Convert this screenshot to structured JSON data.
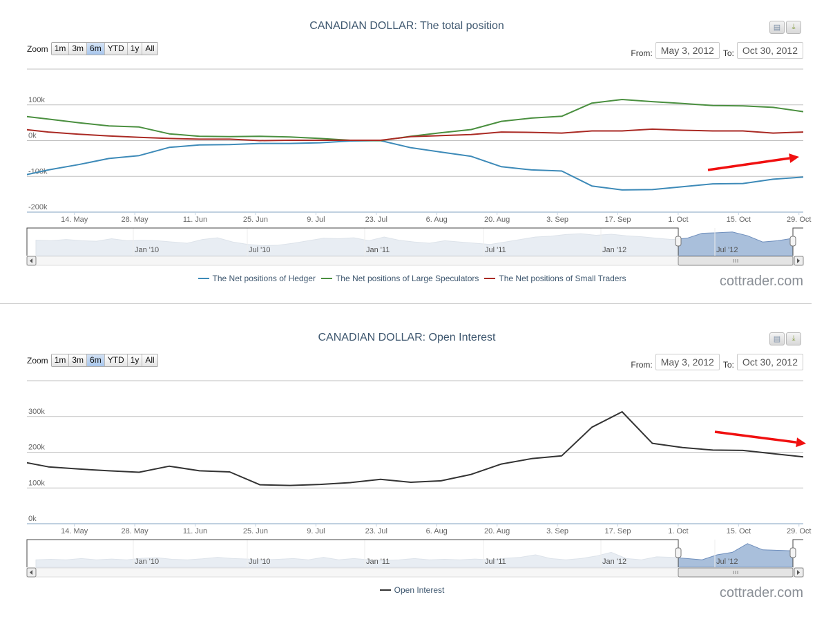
{
  "common": {
    "zoom_label": "Zoom",
    "zoom_buttons": [
      "1m",
      "3m",
      "6m",
      "YTD",
      "1y",
      "All"
    ],
    "selected_zoom": "6m",
    "from_label": "From:",
    "to_label": "To:",
    "from_value": "May 3, 2012",
    "to_value": "Oct 30, 2012",
    "watermark": "cottrader.com",
    "print_icon": "print-icon",
    "download_icon": "download-icon"
  },
  "chart_data": [
    {
      "type": "line",
      "title": "CANADIAN DOLLAR: The total position",
      "x_range": [
        "2012-05-03",
        "2012-10-30"
      ],
      "x_tick_labels": [
        "14. May",
        "28. May",
        "11. Jun",
        "25. Jun",
        "9. Jul",
        "23. Jul",
        "6. Aug",
        "20. Aug",
        "3. Sep",
        "17. Sep",
        "1. Oct",
        "15. Oct",
        "29. Oct"
      ],
      "ylim": [
        -200000,
        200000
      ],
      "y_ticks": [
        -200000,
        -100000,
        0,
        100000
      ],
      "y_tick_labels": [
        "-200k",
        "-100k",
        "0k",
        "100k"
      ],
      "grid": true,
      "legend_position": "bottom",
      "x": [
        "2012-05-01",
        "2012-05-08",
        "2012-05-15",
        "2012-05-22",
        "2012-05-29",
        "2012-06-05",
        "2012-06-12",
        "2012-06-19",
        "2012-06-26",
        "2012-07-03",
        "2012-07-10",
        "2012-07-17",
        "2012-07-24",
        "2012-07-31",
        "2012-08-07",
        "2012-08-14",
        "2012-08-21",
        "2012-08-28",
        "2012-09-04",
        "2012-09-11",
        "2012-09-18",
        "2012-09-25",
        "2012-10-02",
        "2012-10-09",
        "2012-10-16",
        "2012-10-23",
        "2012-10-30"
      ],
      "series": [
        {
          "name": "The Net positions of Hedger",
          "color": "#4572a7",
          "stroke": "#3d8ab8",
          "values": [
            -100000,
            -82000,
            -67000,
            -50000,
            -42000,
            -19000,
            -12000,
            -11000,
            -8000,
            -8000,
            -6000,
            -1000,
            0,
            -20000,
            -32000,
            -44000,
            -73000,
            -82000,
            -85000,
            -127000,
            -138000,
            -137000,
            -129000,
            -121000,
            -120000,
            -108000,
            -102000
          ]
        },
        {
          "name": "The Net positions of Large Speculators",
          "color": "#4a8f3f",
          "stroke": "#4a8f3f",
          "values": [
            70000,
            60000,
            50000,
            41000,
            38000,
            19000,
            12000,
            11000,
            12000,
            10000,
            6000,
            1000,
            0,
            12000,
            22000,
            31000,
            54000,
            63000,
            68000,
            105000,
            115000,
            109000,
            104000,
            98000,
            97000,
            93000,
            81000
          ]
        },
        {
          "name": "The Net positions of Small Traders",
          "color": "#aa2a24",
          "stroke": "#aa2a24",
          "values": [
            33000,
            24000,
            18000,
            13000,
            9000,
            6000,
            4000,
            4000,
            0,
            1000,
            1000,
            1000,
            1000,
            11000,
            14000,
            17000,
            24000,
            23000,
            21000,
            27000,
            27000,
            32000,
            29000,
            27000,
            27000,
            21000,
            24000
          ]
        }
      ],
      "navigator": {
        "tick_labels": [
          "Jan '10",
          "Jul '10",
          "Jan '11",
          "Jul '11",
          "Jan '12",
          "Jul '12"
        ],
        "relative_values": [
          0.62,
          0.6,
          0.65,
          0.6,
          0.58,
          0.68,
          0.6,
          0.62,
          0.6,
          0.55,
          0.5,
          0.65,
          0.72,
          0.55,
          0.45,
          0.4,
          0.42,
          0.5,
          0.6,
          0.7,
          0.68,
          0.72,
          0.6,
          0.75,
          0.62,
          0.55,
          0.5,
          0.6,
          0.55,
          0.5,
          0.45,
          0.55,
          0.65,
          0.75,
          0.78,
          0.85,
          0.88,
          0.82,
          0.86,
          0.8,
          0.76,
          0.7,
          0.65,
          0.7,
          0.9,
          0.92,
          0.95,
          0.8,
          0.55,
          0.6,
          0.7
        ]
      },
      "annotation": "trend-arrow-up"
    },
    {
      "type": "line",
      "title": "CANADIAN DOLLAR: Open Interest",
      "x_range": [
        "2012-05-03",
        "2012-10-30"
      ],
      "x_tick_labels": [
        "14. May",
        "28. May",
        "11. Jun",
        "25. Jun",
        "9. Jul",
        "23. Jul",
        "6. Aug",
        "20. Aug",
        "3. Sep",
        "17. Sep",
        "1. Oct",
        "15. Oct",
        "29. Oct"
      ],
      "ylim": [
        0,
        400000
      ],
      "y_ticks": [
        0,
        100000,
        200000,
        300000
      ],
      "y_tick_labels": [
        "0k",
        "100k",
        "200k",
        "300k"
      ],
      "grid": true,
      "legend_position": "bottom",
      "x": [
        "2012-05-01",
        "2012-05-08",
        "2012-05-15",
        "2012-05-22",
        "2012-05-29",
        "2012-06-05",
        "2012-06-12",
        "2012-06-19",
        "2012-06-26",
        "2012-07-03",
        "2012-07-10",
        "2012-07-17",
        "2012-07-24",
        "2012-07-31",
        "2012-08-07",
        "2012-08-14",
        "2012-08-21",
        "2012-08-28",
        "2012-09-04",
        "2012-09-11",
        "2012-09-18",
        "2012-09-25",
        "2012-10-02",
        "2012-10-09",
        "2012-10-16",
        "2012-10-23",
        "2012-10-30"
      ],
      "series": [
        {
          "name": "Open Interest",
          "color": "#333333",
          "stroke": "#333333",
          "values": [
            175000,
            159000,
            153000,
            148000,
            144000,
            161000,
            148000,
            145000,
            109000,
            107000,
            110000,
            115000,
            124000,
            116000,
            120000,
            138000,
            167000,
            182000,
            190000,
            270000,
            313000,
            225000,
            213000,
            206000,
            205000,
            196000,
            187000
          ]
        }
      ],
      "navigator": {
        "tick_labels": [
          "Jan '10",
          "Jul '10",
          "Jan '11",
          "Jul '11",
          "Jan '12",
          "Jul '12"
        ],
        "relative_values": [
          0.3,
          0.32,
          0.3,
          0.35,
          0.3,
          0.33,
          0.3,
          0.36,
          0.38,
          0.32,
          0.3,
          0.34,
          0.4,
          0.35,
          0.33,
          0.3,
          0.32,
          0.35,
          0.3,
          0.4,
          0.3,
          0.35,
          0.3,
          0.28,
          0.3,
          0.35,
          0.3,
          0.32,
          0.3,
          0.33,
          0.3,
          0.36,
          0.4,
          0.5,
          0.35,
          0.3,
          0.35,
          0.45,
          0.6,
          0.35,
          0.3,
          0.42,
          0.4,
          0.35,
          0.3,
          0.5,
          0.6,
          0.95,
          0.7,
          0.68,
          0.66
        ]
      },
      "annotation": "trend-arrow-down"
    }
  ]
}
